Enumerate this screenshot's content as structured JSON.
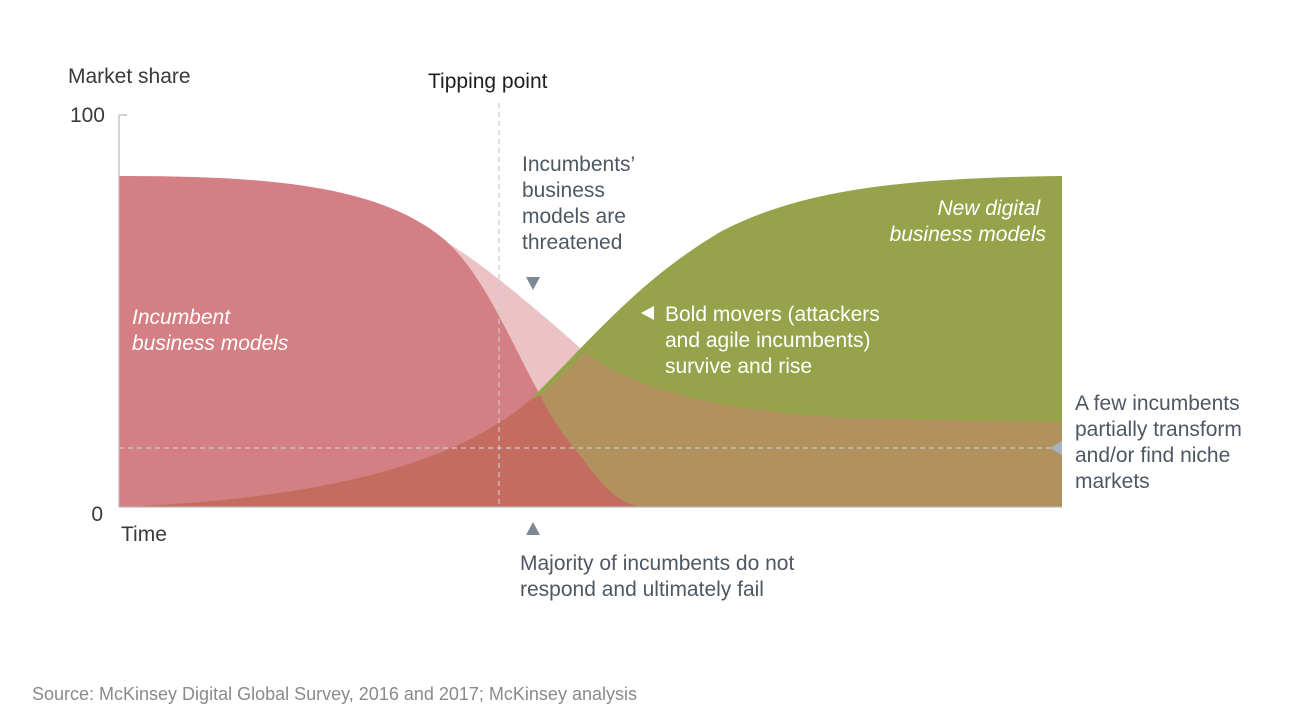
{
  "chart_data": {
    "type": "area",
    "ylabel": "Market share",
    "xlabel": "Time",
    "ylim": [
      0,
      100
    ],
    "y_ticks": [
      "100",
      "0"
    ],
    "tipping_point_label": "Tipping point",
    "series": [
      {
        "name": "Incumbent business models",
        "name_lines": [
          "Incumbent",
          "business models"
        ],
        "color": "#d47f83"
      },
      {
        "name": "New digital business models",
        "name_lines": [
          "New digital",
          "business models"
        ],
        "color": "#97a34b"
      }
    ],
    "overlap_colors": {
      "threatened_band": "#ebc3c7",
      "remaining_incumbents": "#b1925f",
      "early_attackers": "#c56c61"
    },
    "annotations": {
      "threatened": [
        "Incumbents’",
        "business",
        "models are",
        "threatened"
      ],
      "bold_movers": [
        "Bold movers (attackers",
        "and agile incumbents)",
        "survive and rise"
      ],
      "few_incumbents": [
        "A few incumbents",
        "partially transform",
        "and/or find niche",
        "markets"
      ],
      "majority_fail": [
        "Majority of incumbents do not",
        "respond and ultimately fail"
      ]
    },
    "dashed_reference_level": 15,
    "source": "Source: McKinsey Digital Global Survey, 2016 and 2017; McKinsey analysis"
  }
}
